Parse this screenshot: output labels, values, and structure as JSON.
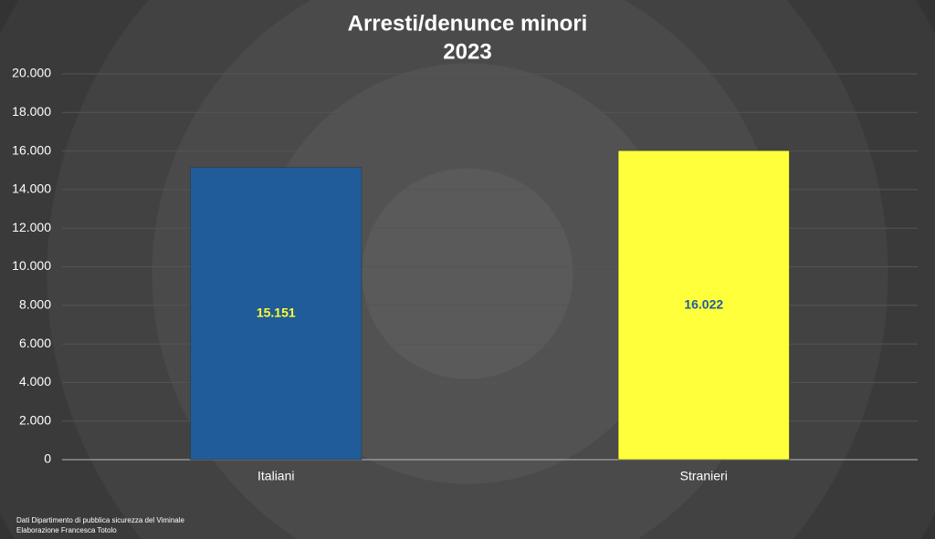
{
  "chart_data": {
    "type": "bar",
    "title": "Arresti/denunce minori",
    "subtitle": "2023",
    "categories": [
      "Italiani",
      "Stranieri"
    ],
    "values": [
      15151,
      16022
    ],
    "value_labels": [
      "15.151",
      "16.022"
    ],
    "colors": [
      "#1f5c99",
      "#ffff3c"
    ],
    "label_colors": [
      "#ffff33",
      "#1f5c99"
    ],
    "ylim": [
      0,
      20000
    ],
    "yticks": [
      0,
      {
        "value": 2000,
        "label": "2.000"
      },
      {
        "value": 4000,
        "label": "4.000"
      },
      {
        "value": 6000,
        "label": "6.000"
      },
      {
        "value": 8000,
        "label": "8.000"
      },
      {
        "value": 10000,
        "label": "10.000"
      },
      {
        "value": 12000,
        "label": "12.000"
      },
      {
        "value": 14000,
        "label": "14.000"
      },
      {
        "value": 16000,
        "label": "16.000"
      },
      {
        "value": 18000,
        "label": "18.000"
      },
      {
        "value": 20000,
        "label": "20.000"
      }
    ],
    "grid": true,
    "notes": [
      "Dati Dipartimento di pubblica sicurezza del Viminale",
      "Elaborazione Francesca Totolo"
    ]
  }
}
